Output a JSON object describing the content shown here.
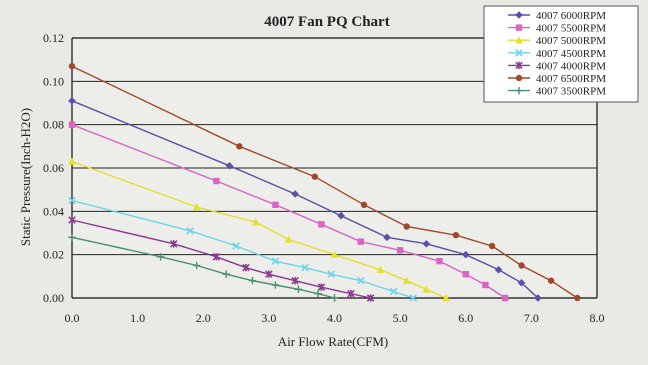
{
  "chart_data": {
    "type": "line",
    "title": "4007  Fan PQ Chart",
    "xlabel": "Air Flow Rate(CFM)",
    "ylabel": "Static Pressure(Inch-H2O)",
    "xlim": [
      0,
      8
    ],
    "ylim": [
      0,
      0.12
    ],
    "x_ticks": [
      "0.0",
      "1.0",
      "2.0",
      "3.0",
      "4.0",
      "5.0",
      "6.0",
      "7.0",
      "8.0"
    ],
    "y_ticks": [
      "0.00",
      "0.02",
      "0.04",
      "0.06",
      "0.08",
      "0.10",
      "0.12"
    ],
    "grid": "horizontal",
    "legend_position": "top-right",
    "series": [
      {
        "name": "4007  6000RPM",
        "color": "#5b4fa6",
        "marker": "diamond",
        "x": [
          0,
          2.4,
          3.4,
          4.1,
          4.8,
          5.4,
          6.0,
          6.5,
          6.85,
          7.1
        ],
        "y": [
          0.091,
          0.061,
          0.048,
          0.038,
          0.028,
          0.025,
          0.02,
          0.013,
          0.007,
          0.0
        ]
      },
      {
        "name": "4007  5500RPM",
        "color": "#d765c4",
        "marker": "square",
        "x": [
          0,
          2.2,
          3.1,
          3.8,
          4.4,
          5.0,
          5.6,
          6.0,
          6.3,
          6.6
        ],
        "y": [
          0.08,
          0.054,
          0.043,
          0.034,
          0.026,
          0.022,
          0.017,
          0.011,
          0.006,
          0.0
        ]
      },
      {
        "name": "4007  5000RPM",
        "color": "#e4e02c",
        "marker": "triangle",
        "x": [
          0,
          1.9,
          2.8,
          3.3,
          4.0,
          4.7,
          5.1,
          5.4,
          5.7
        ],
        "y": [
          0.063,
          0.042,
          0.035,
          0.027,
          0.02,
          0.013,
          0.008,
          0.004,
          0.0
        ]
      },
      {
        "name": "4007  4500RPM",
        "color": "#6fd3e8",
        "marker": "x",
        "x": [
          0,
          1.8,
          2.5,
          3.1,
          3.55,
          3.95,
          4.4,
          4.9,
          5.2
        ],
        "y": [
          0.045,
          0.031,
          0.024,
          0.017,
          0.014,
          0.011,
          0.008,
          0.003,
          0.0
        ]
      },
      {
        "name": "4007 4000RPM",
        "color": "#8b3a8f",
        "marker": "asterisk",
        "x": [
          0,
          1.55,
          2.2,
          2.65,
          3.0,
          3.4,
          3.8,
          4.25,
          4.55
        ],
        "y": [
          0.036,
          0.025,
          0.019,
          0.014,
          0.011,
          0.008,
          0.005,
          0.002,
          0.0
        ]
      },
      {
        "name": "4007   6500RPM",
        "color": "#a0482c",
        "marker": "circle",
        "x": [
          0,
          2.55,
          3.7,
          4.45,
          5.1,
          5.85,
          6.4,
          6.85,
          7.3,
          7.7
        ],
        "y": [
          0.107,
          0.07,
          0.056,
          0.043,
          0.033,
          0.029,
          0.024,
          0.015,
          0.008,
          0.0
        ]
      },
      {
        "name": "4007   3500RPM",
        "color": "#4a8f6e",
        "marker": "plus",
        "x": [
          0,
          1.35,
          1.9,
          2.35,
          2.75,
          3.1,
          3.45,
          3.75,
          4.0
        ],
        "y": [
          0.028,
          0.019,
          0.015,
          0.011,
          0.008,
          0.006,
          0.004,
          0.002,
          0.0
        ]
      }
    ]
  }
}
